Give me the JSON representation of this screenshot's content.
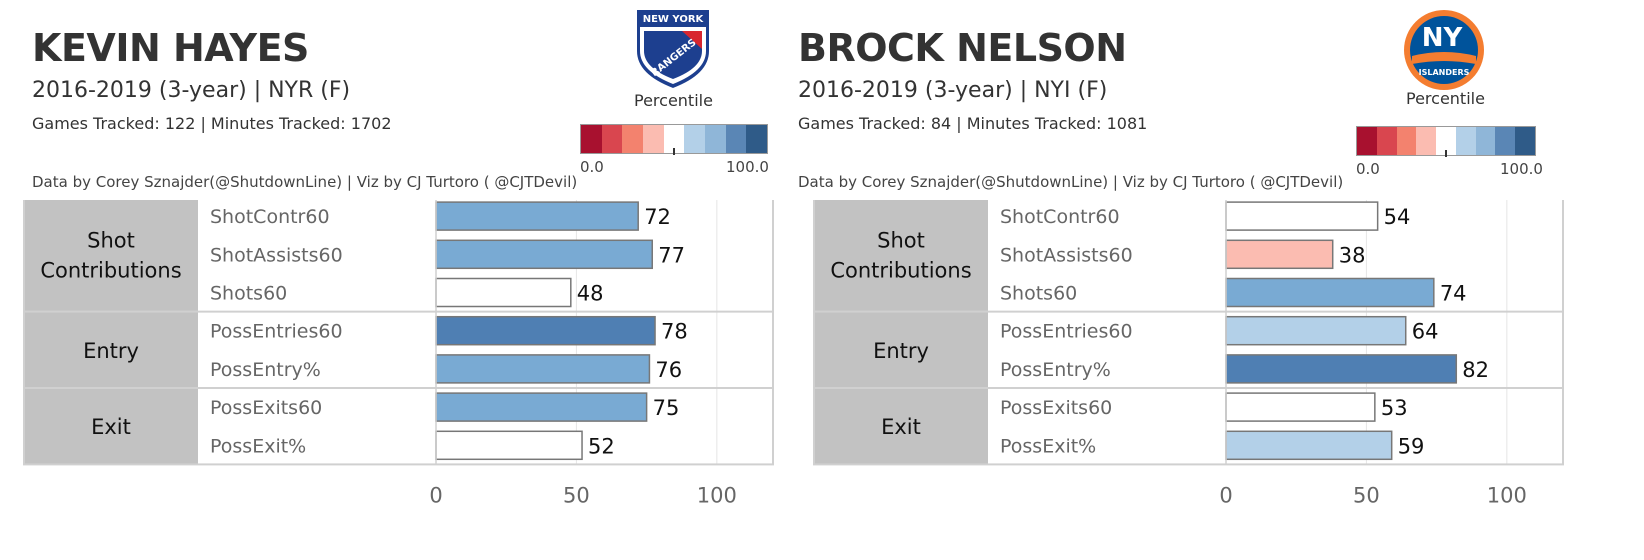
{
  "legend": {
    "title": "Percentile",
    "min_label": "0.0",
    "max_label": "100.0",
    "palette": [
      "#a8112f",
      "#d9464f",
      "#f3826e",
      "#fbbcb1",
      "#ffffff",
      "#b3d0e8",
      "#8fb6d8",
      "#5a86b5",
      "#2f5b88"
    ]
  },
  "colors": {
    "pct_50_59": "#ffffff",
    "pct_60_69": "#b3d0e8",
    "pct_70_79": "#79aad3",
    "pct_80_89": "#4f7fb3",
    "pct_30_39": "#fbbcb1",
    "category_band": "#c2c2c2"
  },
  "players": [
    {
      "name": "KEVIN HAYES",
      "subtitle": "2016-2019 (3-year) | NYR (F)",
      "stats": "Games Tracked: 122  | Minutes Tracked: 1702",
      "credit": "Data by Corey Sznajder(@ShutdownLine) | Viz by CJ Turtoro ( @CJTDevil)",
      "logo_text_top": "NEW YORK",
      "logo_text_bottom": "RANGERS",
      "logo_icon": "rangers-shield-logo"
    },
    {
      "name": "BROCK NELSON",
      "subtitle": "2016-2019 (3-year) | NYI (F)",
      "stats": "Games Tracked: 84  | Minutes Tracked: 1081",
      "credit": "Data by Corey Sznajder(@ShutdownLine) | Viz by CJ Turtoro ( @CJTDevil)",
      "logo_text_top": "NY",
      "logo_text_bottom": "ISLANDERS",
      "logo_icon": "islanders-roundel-logo"
    }
  ],
  "chart_data": [
    {
      "type": "bar",
      "orientation": "horizontal",
      "groups": [
        {
          "label": [
            "Shot",
            "Contributions"
          ],
          "metrics": [
            "ShotContr60",
            "ShotAssists60",
            "Shots60"
          ]
        },
        {
          "label": [
            "Entry"
          ],
          "metrics": [
            "PossEntries60",
            "PossEntry%"
          ]
        },
        {
          "label": [
            "Exit"
          ],
          "metrics": [
            "PossExits60",
            "PossExit%"
          ]
        }
      ],
      "categories": [
        "ShotContr60",
        "ShotAssists60",
        "Shots60",
        "PossEntries60",
        "PossEntry%",
        "PossExits60",
        "PossExit%"
      ],
      "values": [
        72,
        77,
        48,
        78,
        76,
        75,
        52
      ],
      "bar_colors": [
        "#79aad3",
        "#79aad3",
        "#ffffff",
        "#4f7fb3",
        "#79aad3",
        "#79aad3",
        "#ffffff"
      ],
      "x_ticks": [
        "0",
        "50",
        "100"
      ],
      "xlim": [
        0,
        120
      ],
      "grid": true
    },
    {
      "type": "bar",
      "orientation": "horizontal",
      "groups": [
        {
          "label": [
            "Shot",
            "Contributions"
          ],
          "metrics": [
            "ShotContr60",
            "ShotAssists60",
            "Shots60"
          ]
        },
        {
          "label": [
            "Entry"
          ],
          "metrics": [
            "PossEntries60",
            "PossEntry%"
          ]
        },
        {
          "label": [
            "Exit"
          ],
          "metrics": [
            "PossExits60",
            "PossExit%"
          ]
        }
      ],
      "categories": [
        "ShotContr60",
        "ShotAssists60",
        "Shots60",
        "PossEntries60",
        "PossEntry%",
        "PossExits60",
        "PossExit%"
      ],
      "values": [
        54,
        38,
        74,
        64,
        82,
        53,
        59
      ],
      "bar_colors": [
        "#ffffff",
        "#fbbcb1",
        "#79aad3",
        "#b3d0e8",
        "#4f7fb3",
        "#ffffff",
        "#b3d0e8"
      ],
      "x_ticks": [
        "0",
        "50",
        "100"
      ],
      "xlim": [
        0,
        120
      ],
      "grid": true
    }
  ]
}
